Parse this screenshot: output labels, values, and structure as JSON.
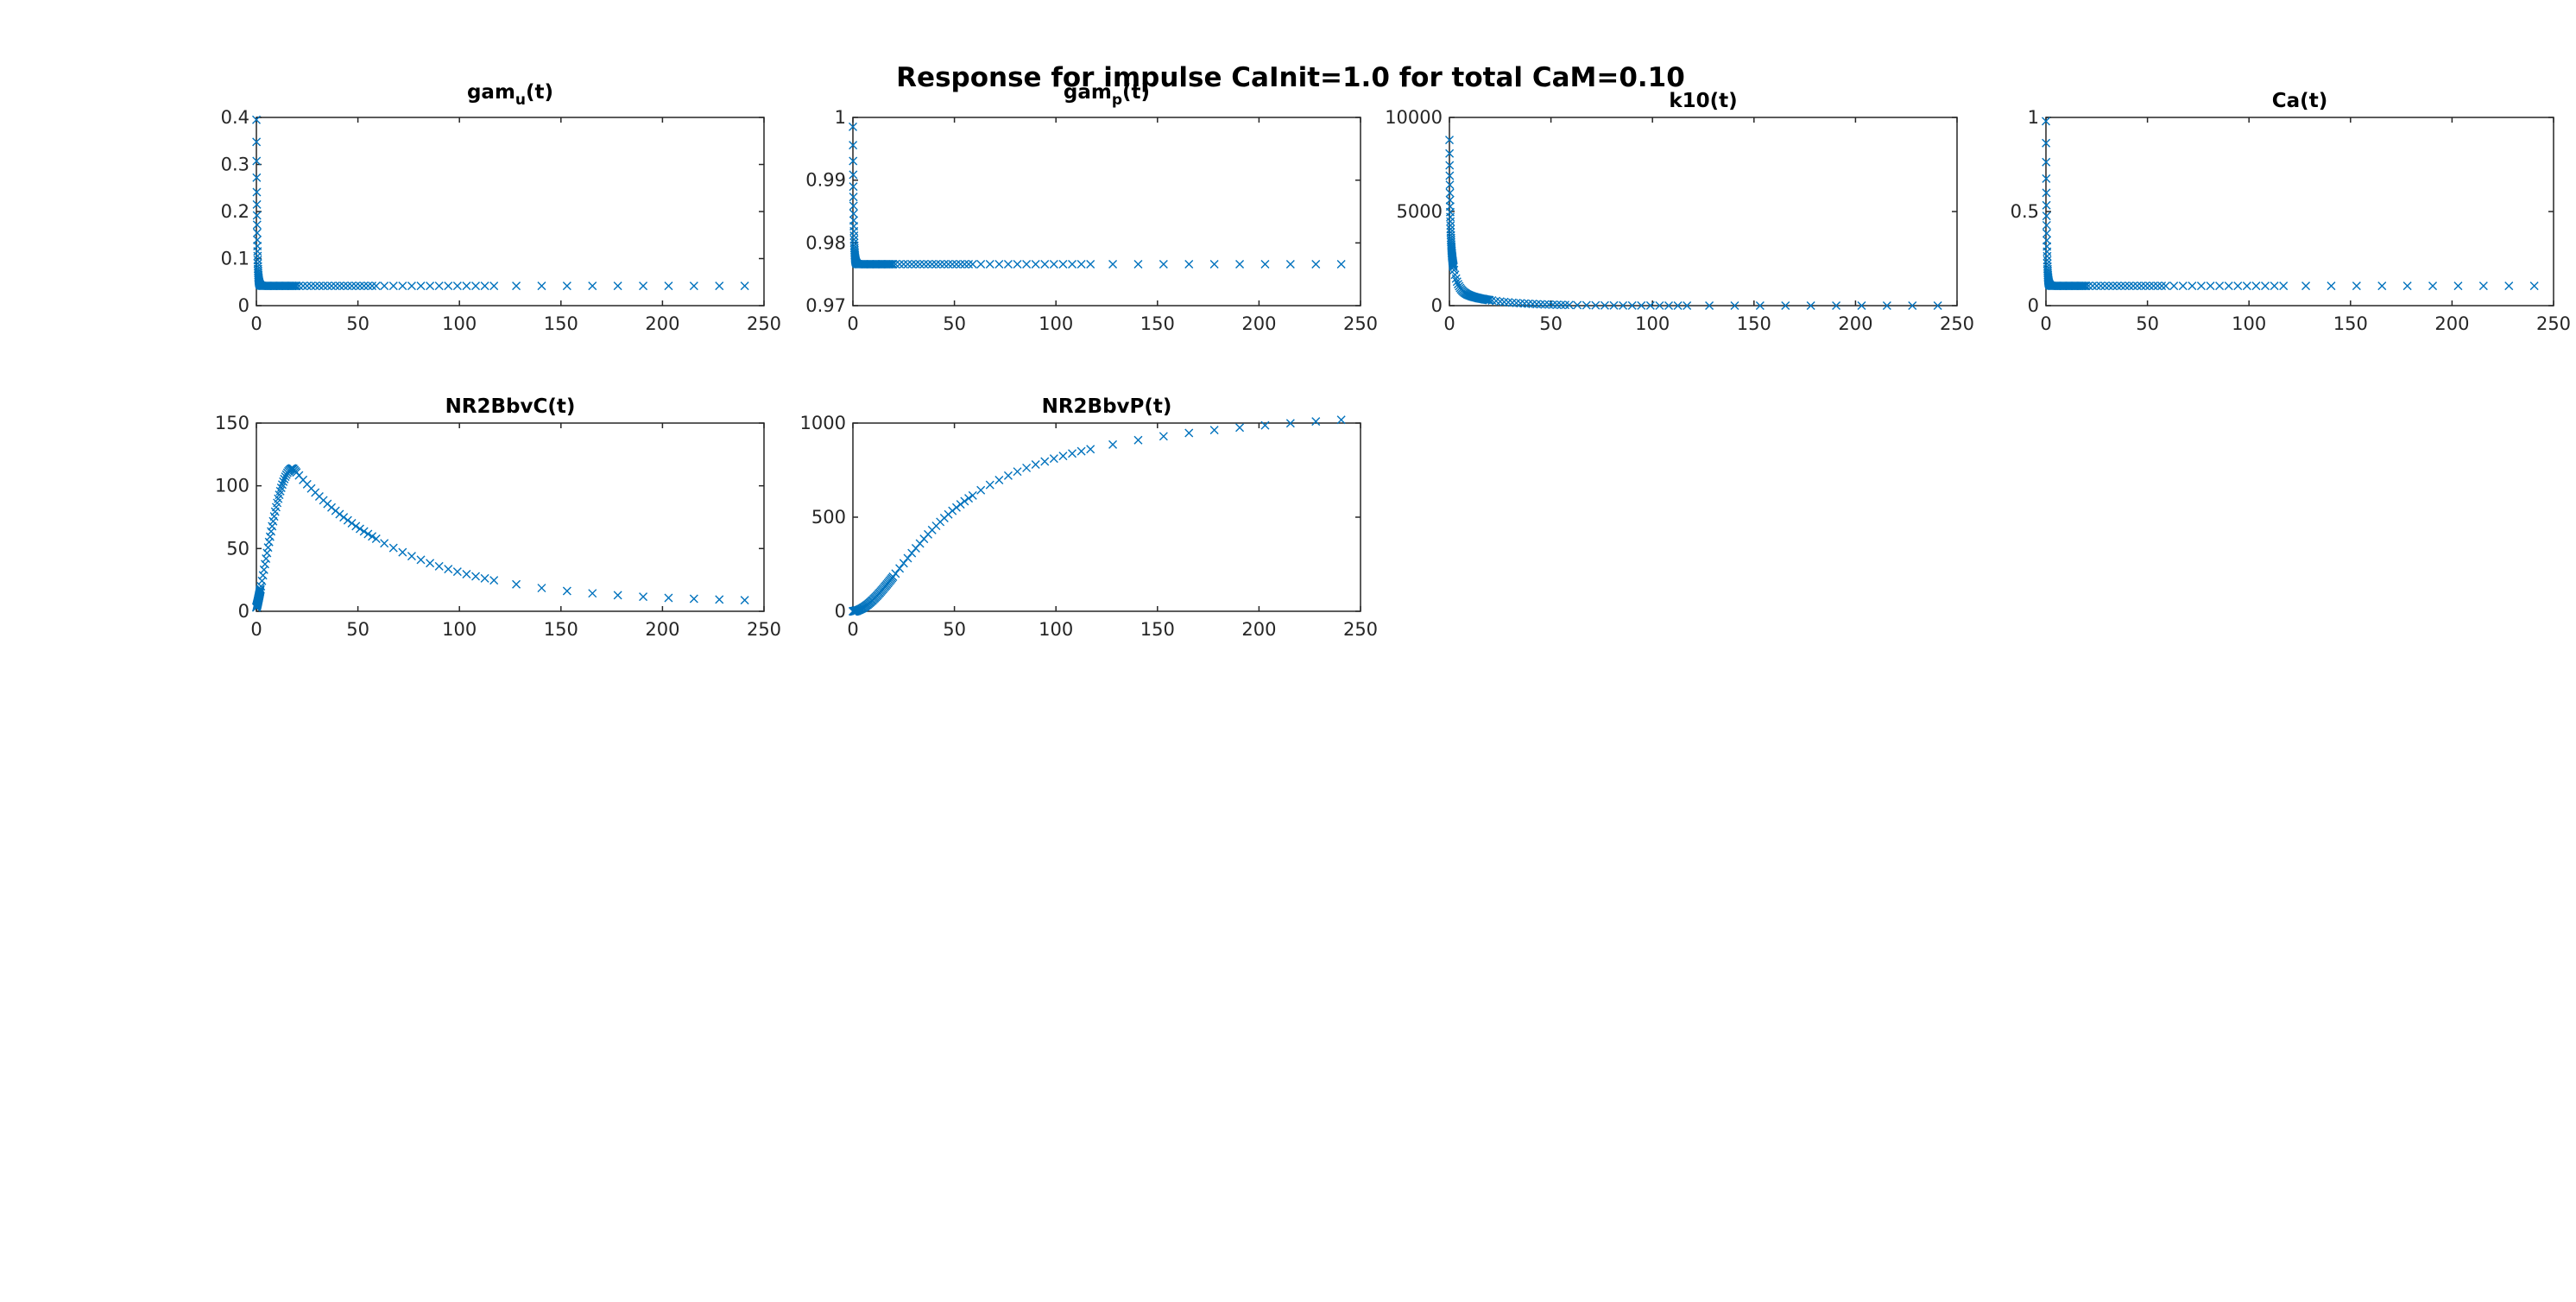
{
  "figure_title": "Response for impulse CaInit=1.0 for total CaM=0.10",
  "marker_color": "#0072BD",
  "chart_data": [
    {
      "type": "scatter",
      "id": "gamu",
      "title_base": "gam",
      "title_sub": "u",
      "title_suffix": "(t)",
      "xlim": [
        0,
        250
      ],
      "ylim": [
        0,
        0.4
      ],
      "xticks": [
        0,
        50,
        100,
        150,
        200,
        250
      ],
      "yticks": [
        0,
        0.1,
        0.2,
        0.3,
        0.4
      ],
      "xtick_labels": [
        "0",
        "50",
        "100",
        "150",
        "200",
        "250"
      ],
      "ytick_labels": [
        "0",
        "0.1",
        "0.2",
        "0.3",
        "0.4"
      ],
      "marker": "x",
      "curve": {
        "kind": "drop",
        "start": 0.395,
        "end": 0.042
      }
    },
    {
      "type": "scatter",
      "id": "gamp",
      "title_base": "gam",
      "title_sub": "p",
      "title_suffix": "(t)",
      "xlim": [
        0,
        250
      ],
      "ylim": [
        0.97,
        1
      ],
      "xticks": [
        0,
        50,
        100,
        150,
        200,
        250
      ],
      "yticks": [
        0.97,
        0.98,
        0.99,
        1
      ],
      "xtick_labels": [
        "0",
        "50",
        "100",
        "150",
        "200",
        "250"
      ],
      "ytick_labels": [
        "0.97",
        "0.98",
        "0.99",
        "1"
      ],
      "marker": "x",
      "curve": {
        "kind": "drop",
        "start": 0.9985,
        "end": 0.9766
      }
    },
    {
      "type": "scatter",
      "id": "k10",
      "title": "k10(t)",
      "xlim": [
        0,
        250
      ],
      "ylim": [
        0,
        10000
      ],
      "xticks": [
        0,
        50,
        100,
        150,
        200,
        250
      ],
      "yticks": [
        0,
        5000,
        10000
      ],
      "xtick_labels": [
        "0",
        "50",
        "100",
        "150",
        "200",
        "250"
      ],
      "ytick_labels": [
        "0",
        "5000",
        "10000"
      ],
      "marker": "x",
      "curve": {
        "kind": "decay",
        "start": 8800,
        "end": 0
      }
    },
    {
      "type": "scatter",
      "id": "ca",
      "title": "Ca(t)",
      "xlim": [
        0,
        250
      ],
      "ylim": [
        0,
        1
      ],
      "xticks": [
        0,
        50,
        100,
        150,
        200,
        250
      ],
      "yticks": [
        0,
        0.5,
        1
      ],
      "xtick_labels": [
        "0",
        "50",
        "100",
        "150",
        "200",
        "250"
      ],
      "ytick_labels": [
        "0",
        "0.5",
        "1"
      ],
      "marker": "x",
      "curve": {
        "kind": "drop",
        "start": 0.98,
        "end": 0.105
      }
    },
    {
      "type": "scatter",
      "id": "nr2bbvc",
      "title": "NR2BbvC(t)",
      "xlim": [
        0,
        250
      ],
      "ylim": [
        0,
        150
      ],
      "xticks": [
        0,
        50,
        100,
        150,
        200,
        250
      ],
      "yticks": [
        0,
        50,
        100,
        150
      ],
      "xtick_labels": [
        "0",
        "50",
        "100",
        "150",
        "200",
        "250"
      ],
      "ytick_labels": [
        "0",
        "50",
        "100",
        "150"
      ],
      "marker": "x",
      "curve": {
        "kind": "peak",
        "peak_x": 18,
        "peak_y": 114,
        "end": 7
      }
    },
    {
      "type": "scatter",
      "id": "nr2bbvp",
      "title": "NR2BbvP(t)",
      "xlim": [
        0,
        250
      ],
      "ylim": [
        0,
        1000
      ],
      "xticks": [
        0,
        50,
        100,
        150,
        200,
        250
      ],
      "yticks": [
        0,
        500,
        1000
      ],
      "xtick_labels": [
        "0",
        "50",
        "100",
        "150",
        "200",
        "250"
      ],
      "ytick_labels": [
        "0",
        "500",
        "1000"
      ],
      "marker": "x",
      "curve": {
        "kind": "sigmoid",
        "end": 990
      }
    }
  ]
}
